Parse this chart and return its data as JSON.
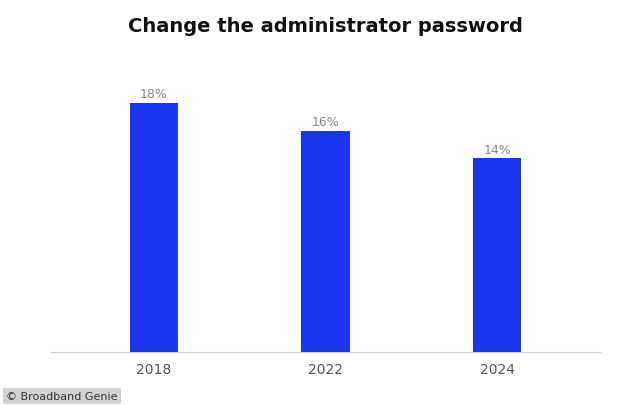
{
  "title": "Change the administrator password",
  "categories": [
    "2018",
    "2022",
    "2024"
  ],
  "values": [
    18,
    16,
    14
  ],
  "labels": [
    "18%",
    "16%",
    "14%"
  ],
  "bar_color": "#1a35f0",
  "background_color": "#ffffff",
  "title_fontsize": 14,
  "label_fontsize": 9,
  "tick_fontsize": 10,
  "watermark": "© Broadband Genie",
  "ylim": [
    0,
    22
  ],
  "bar_width": 0.28
}
